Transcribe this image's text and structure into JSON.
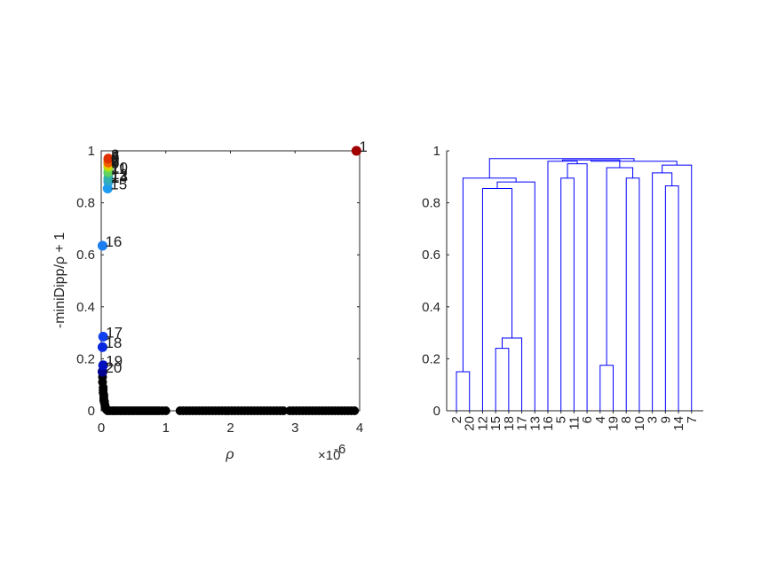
{
  "chart_data": [
    {
      "type": "scatter",
      "xlabel": "ρ",
      "ylabel": "-miniDipp/ρ + 1",
      "x_exponent_label": "×10",
      "x_exponent_value": "-6",
      "xlim": [
        0,
        4
      ],
      "ylim": [
        0,
        1
      ],
      "xticks": [
        "0",
        "1",
        "2",
        "3",
        "4"
      ],
      "yticks": [
        "0",
        "0.2",
        "0.4",
        "0.6",
        "0.8",
        "1"
      ],
      "labeled_points": [
        {
          "label": "1",
          "x": 3.95,
          "y": 1.0,
          "color": "#a00000"
        },
        {
          "label": "2",
          "x": 0.11,
          "y": 0.97,
          "color": "#e03000"
        },
        {
          "label": "3",
          "x": 0.11,
          "y": 0.955,
          "color": "#f06000"
        },
        {
          "label": "4",
          "x": 0.11,
          "y": 0.965,
          "color": "#f09000"
        },
        {
          "label": "5",
          "x": 0.11,
          "y": 0.96,
          "color": "#f0b000"
        },
        {
          "label": "6",
          "x": 0.11,
          "y": 0.945,
          "color": "#e0d000"
        },
        {
          "label": "7",
          "x": 0.11,
          "y": 0.945,
          "color": "#c0e000"
        },
        {
          "label": "8",
          "x": 0.11,
          "y": 0.94,
          "color": "#a0e020"
        },
        {
          "label": "9",
          "x": 0.11,
          "y": 0.935,
          "color": "#80e040"
        },
        {
          "label": "10",
          "x": 0.11,
          "y": 0.92,
          "color": "#60d060"
        },
        {
          "label": "11",
          "x": 0.11,
          "y": 0.915,
          "color": "#40c080"
        },
        {
          "label": "12",
          "x": 0.11,
          "y": 0.895,
          "color": "#30b0b0"
        },
        {
          "label": "13",
          "x": 0.11,
          "y": 0.885,
          "color": "#30a8d0"
        },
        {
          "label": "14",
          "x": 0.11,
          "y": 0.88,
          "color": "#20a0e0"
        },
        {
          "label": "15",
          "x": 0.1,
          "y": 0.855,
          "color": "#1e9cf0"
        },
        {
          "label": "16",
          "x": 0.02,
          "y": 0.635,
          "color": "#1c7ef0"
        },
        {
          "label": "17",
          "x": 0.03,
          "y": 0.285,
          "color": "#1040f0"
        },
        {
          "label": "18",
          "x": 0.02,
          "y": 0.245,
          "color": "#0828e0"
        },
        {
          "label": "19",
          "x": 0.03,
          "y": 0.175,
          "color": "#0010c0"
        },
        {
          "label": "20",
          "x": 0.02,
          "y": 0.15,
          "color": "#000090"
        }
      ],
      "background_points_color": "#000000",
      "background_points": [
        [
          0.02,
          0.13
        ],
        [
          0.02,
          0.11
        ],
        [
          0.03,
          0.09
        ],
        [
          0.03,
          0.08
        ],
        [
          0.03,
          0.07
        ],
        [
          0.04,
          0.06
        ],
        [
          0.04,
          0.05
        ],
        [
          0.04,
          0.04
        ],
        [
          0.05,
          0.035
        ],
        [
          0.05,
          0.03
        ],
        [
          0.06,
          0.02
        ],
        [
          0.06,
          0.015
        ],
        [
          0.07,
          0.01
        ],
        [
          0.08,
          0.005
        ],
        [
          0.1,
          0.0
        ],
        [
          0.14,
          0.0
        ],
        [
          0.18,
          0.0
        ],
        [
          0.22,
          0.0
        ],
        [
          0.26,
          0.0
        ],
        [
          0.3,
          0.0
        ],
        [
          0.34,
          0.0
        ],
        [
          0.38,
          0.0
        ],
        [
          0.42,
          0.0
        ],
        [
          0.46,
          0.0
        ],
        [
          0.5,
          0.0
        ],
        [
          0.54,
          0.0
        ],
        [
          0.58,
          0.0
        ],
        [
          0.62,
          0.0
        ],
        [
          0.66,
          0.0
        ],
        [
          0.7,
          0.0
        ],
        [
          0.74,
          0.0
        ],
        [
          0.78,
          0.0
        ],
        [
          0.82,
          0.0
        ],
        [
          0.86,
          0.0
        ],
        [
          0.9,
          0.0
        ],
        [
          0.95,
          0.0
        ],
        [
          1.0,
          0.0
        ],
        [
          1.22,
          0.0
        ],
        [
          1.27,
          0.0
        ],
        [
          1.32,
          0.0
        ],
        [
          1.37,
          0.0
        ],
        [
          1.42,
          0.0
        ],
        [
          1.47,
          0.0
        ],
        [
          1.52,
          0.0
        ],
        [
          1.57,
          0.0
        ],
        [
          1.62,
          0.0
        ],
        [
          1.67,
          0.0
        ],
        [
          1.72,
          0.0
        ],
        [
          1.77,
          0.0
        ],
        [
          1.82,
          0.0
        ],
        [
          1.87,
          0.0
        ],
        [
          1.92,
          0.0
        ],
        [
          1.97,
          0.0
        ],
        [
          2.02,
          0.0
        ],
        [
          2.07,
          0.0
        ],
        [
          2.12,
          0.0
        ],
        [
          2.17,
          0.0
        ],
        [
          2.22,
          0.0
        ],
        [
          2.27,
          0.0
        ],
        [
          2.32,
          0.0
        ],
        [
          2.37,
          0.0
        ],
        [
          2.42,
          0.0
        ],
        [
          2.47,
          0.0
        ],
        [
          2.52,
          0.0
        ],
        [
          2.57,
          0.0
        ],
        [
          2.62,
          0.0
        ],
        [
          2.67,
          0.0
        ],
        [
          2.72,
          0.0
        ],
        [
          2.77,
          0.0
        ],
        [
          2.82,
          0.0
        ],
        [
          2.92,
          0.0
        ],
        [
          2.97,
          0.0
        ],
        [
          3.02,
          0.0
        ],
        [
          3.07,
          0.0
        ],
        [
          3.12,
          0.0
        ],
        [
          3.17,
          0.0
        ],
        [
          3.22,
          0.0
        ],
        [
          3.27,
          0.0
        ],
        [
          3.32,
          0.0
        ],
        [
          3.37,
          0.0
        ],
        [
          3.42,
          0.0
        ],
        [
          3.47,
          0.0
        ],
        [
          3.52,
          0.0
        ],
        [
          3.57,
          0.0
        ],
        [
          3.62,
          0.0
        ],
        [
          3.67,
          0.0
        ],
        [
          3.72,
          0.0
        ],
        [
          3.77,
          0.0
        ],
        [
          3.82,
          0.0
        ],
        [
          3.87,
          0.0
        ],
        [
          3.92,
          0.0
        ]
      ]
    },
    {
      "type": "dendrogram",
      "ylim": [
        0,
        1
      ],
      "yticks": [
        "0",
        "0.2",
        "0.4",
        "0.6",
        "0.8",
        "1"
      ],
      "line_color": "#0000ff",
      "leaf_order": [
        "2",
        "20",
        "12",
        "15",
        "18",
        "17",
        "13",
        "16",
        "5",
        "11",
        "6",
        "4",
        "19",
        "8",
        "10",
        "3",
        "9",
        "14",
        "7"
      ],
      "merges": [
        {
          "left": "L2",
          "right": "L20",
          "height": 0.15,
          "id": "a"
        },
        {
          "left": "L15",
          "right": "L18",
          "height": 0.24,
          "id": "b"
        },
        {
          "left": "b",
          "right": "L17",
          "height": 0.28,
          "id": "c"
        },
        {
          "left": "L12",
          "right": "c",
          "height": 0.855,
          "id": "d"
        },
        {
          "left": "d",
          "right": "L13",
          "height": 0.88,
          "id": "e"
        },
        {
          "left": "a",
          "right": "e",
          "height": 0.895,
          "id": "f"
        },
        {
          "left": "L5",
          "right": "L11",
          "height": 0.895,
          "id": "g"
        },
        {
          "left": "g",
          "right": "L6",
          "height": 0.95,
          "id": "h"
        },
        {
          "left": "L16",
          "right": "h",
          "height": 0.96,
          "id": "i"
        },
        {
          "left": "L4",
          "right": "L19",
          "height": 0.175,
          "id": "j"
        },
        {
          "left": "L8",
          "right": "L10",
          "height": 0.895,
          "id": "k"
        },
        {
          "left": "j",
          "right": "k",
          "height": 0.935,
          "id": "l"
        },
        {
          "left": "i",
          "right": "l",
          "height": 0.965,
          "id": "m"
        },
        {
          "left": "L9",
          "right": "L14",
          "height": 0.865,
          "id": "n"
        },
        {
          "left": "L3",
          "right": "n",
          "height": 0.915,
          "id": "o"
        },
        {
          "left": "o",
          "right": "L7",
          "height": 0.945,
          "id": "p"
        },
        {
          "left": "m",
          "right": "p",
          "height": 0.96,
          "id": "q"
        },
        {
          "left": "f",
          "right": "q",
          "height": 0.97,
          "id": "r"
        }
      ]
    }
  ]
}
